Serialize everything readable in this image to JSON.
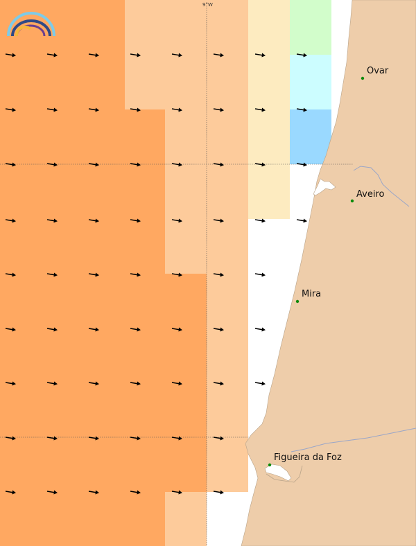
{
  "map": {
    "meridian_label": "9°W",
    "legend_colors": [
      "#fcd7b0",
      "#ffa861",
      "#fdebc0",
      "#d2fdcb",
      "#ccfdff",
      "#9ad9ff"
    ],
    "land_color": "#eecdaa",
    "water_color": "#ffffff",
    "arrow_direction": "east",
    "cities": [
      {
        "name": "Ovar",
        "marker_color": "#0a8a0a"
      },
      {
        "name": "Aveiro",
        "marker_color": "#0a8a0a"
      },
      {
        "name": "Mira",
        "marker_color": "#0a8a0a"
      },
      {
        "name": "Figueira da Foz",
        "marker_color": "#0a8a0a"
      }
    ]
  },
  "logo": {
    "name": "rainbow-logo-icon"
  }
}
